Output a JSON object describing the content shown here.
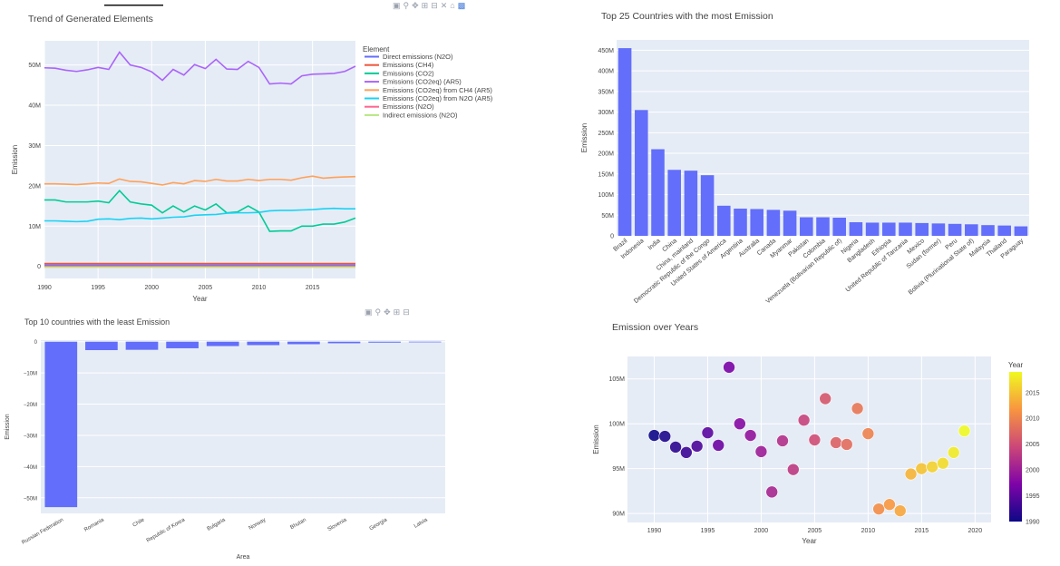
{
  "colors": {
    "plot_bg": "#e5ecf6",
    "grid": "#ffffff",
    "bar": "#636efa",
    "text": "#444444"
  },
  "modebar_icons": [
    "camera-icon",
    "zoom-icon",
    "pan-icon",
    "zoom-in-icon",
    "zoom-out-icon",
    "autoscale-icon",
    "home-icon",
    "logo-icon"
  ],
  "chart_data": [
    {
      "type": "line",
      "title": "Trend of Generated Elements",
      "xlabel": "Year",
      "ylabel": "Emission",
      "legend_title": "Element",
      "legend_position": "right",
      "xlim": [
        1990,
        2019
      ],
      "ylim": [
        -3000000,
        56000000
      ],
      "x_ticks": [
        1990,
        1995,
        2000,
        2005,
        2010,
        2015
      ],
      "y_ticks": [
        {
          "v": 0,
          "t": "0"
        },
        {
          "v": 10000000,
          "t": "10M"
        },
        {
          "v": 20000000,
          "t": "20M"
        },
        {
          "v": 30000000,
          "t": "30M"
        },
        {
          "v": 40000000,
          "t": "40M"
        },
        {
          "v": 50000000,
          "t": "50M"
        }
      ],
      "x": [
        1990,
        1991,
        1992,
        1993,
        1994,
        1995,
        1996,
        1997,
        1998,
        1999,
        2000,
        2001,
        2002,
        2003,
        2004,
        2005,
        2006,
        2007,
        2008,
        2009,
        2010,
        2011,
        2012,
        2013,
        2014,
        2015,
        2016,
        2017,
        2018,
        2019
      ],
      "series": [
        {
          "name": "Direct emissions (N2O)",
          "color": "#636efa",
          "values": [
            300000,
            300000,
            300000,
            300000,
            300000,
            300000,
            300000,
            300000,
            300000,
            300000,
            300000,
            300000,
            300000,
            300000,
            300000,
            300000,
            300000,
            300000,
            300000,
            300000,
            300000,
            300000,
            300000,
            300000,
            300000,
            300000,
            300000,
            300000,
            300000,
            300000
          ]
        },
        {
          "name": "Emissions (CH4)",
          "color": "#ef553b",
          "values": [
            700000,
            700000,
            700000,
            700000,
            700000,
            700000,
            700000,
            700000,
            700000,
            700000,
            700000,
            700000,
            700000,
            700000,
            700000,
            700000,
            700000,
            700000,
            700000,
            700000,
            700000,
            700000,
            700000,
            700000,
            700000,
            700000,
            700000,
            700000,
            700000,
            700000
          ]
        },
        {
          "name": "Emissions (CO2)",
          "color": "#00cc96",
          "values": [
            16500000,
            16500000,
            16000000,
            16000000,
            16000000,
            16200000,
            15800000,
            18800000,
            16000000,
            15500000,
            15200000,
            13300000,
            15000000,
            13500000,
            15000000,
            14000000,
            15500000,
            13300000,
            13500000,
            15000000,
            13500000,
            8700000,
            8800000,
            8800000,
            10000000,
            10000000,
            10500000,
            10500000,
            11000000,
            12000000
          ]
        },
        {
          "name": "Emissions (CO2eq) (AR5)",
          "color": "#ab63fa",
          "values": [
            49300000,
            49200000,
            48700000,
            48400000,
            48800000,
            49400000,
            48900000,
            53200000,
            50000000,
            49400000,
            48300000,
            46200000,
            48900000,
            47500000,
            50100000,
            49100000,
            51400000,
            49000000,
            48900000,
            50900000,
            49400000,
            45300000,
            45500000,
            45300000,
            47300000,
            47700000,
            47800000,
            47900000,
            48400000,
            49700000
          ]
        },
        {
          "name": "Emissions (CO2eq) from CH4 (AR5)",
          "color": "#ffa15a",
          "values": [
            20500000,
            20500000,
            20400000,
            20300000,
            20500000,
            20700000,
            20600000,
            21700000,
            21100000,
            21000000,
            20600000,
            20200000,
            20800000,
            20500000,
            21300000,
            21100000,
            21600000,
            21200000,
            21200000,
            21600000,
            21300000,
            21600000,
            21600000,
            21400000,
            22000000,
            22400000,
            21900000,
            22100000,
            22200000,
            22300000
          ]
        },
        {
          "name": "Emissions (CO2eq) from N2O (AR5)",
          "color": "#19d3f3",
          "values": [
            11300000,
            11300000,
            11200000,
            11100000,
            11200000,
            11700000,
            11800000,
            11600000,
            11900000,
            12000000,
            11800000,
            12000000,
            12200000,
            12300000,
            12700000,
            12800000,
            12900000,
            13200000,
            13300000,
            13300000,
            13400000,
            13800000,
            13900000,
            13900000,
            14000000,
            14100000,
            14300000,
            14400000,
            14300000,
            14300000
          ]
        },
        {
          "name": "Emissions (N2O)",
          "color": "#ff6692",
          "values": [
            40000,
            40000,
            40000,
            40000,
            40000,
            40000,
            40000,
            40000,
            40000,
            40000,
            40000,
            40000,
            40000,
            40000,
            40000,
            40000,
            40000,
            40000,
            40000,
            40000,
            40000,
            40000,
            40000,
            40000,
            40000,
            40000,
            40000,
            40000,
            40000,
            40000
          ]
        },
        {
          "name": "Indirect emissions (N2O)",
          "color": "#b6e880",
          "values": [
            -200000,
            -200000,
            -200000,
            -200000,
            -200000,
            -200000,
            -200000,
            -200000,
            -200000,
            -200000,
            -200000,
            -200000,
            -200000,
            -200000,
            -200000,
            -200000,
            -200000,
            -200000,
            -200000,
            -200000,
            -200000,
            -200000,
            -200000,
            -200000,
            -200000,
            -200000,
            -200000,
            -200000,
            -200000,
            -200000
          ]
        }
      ]
    },
    {
      "type": "bar",
      "title": "Top 25 Countries with the most Emission",
      "xlabel": "",
      "ylabel": "Emission",
      "ylim": [
        0,
        475000000
      ],
      "y_ticks": [
        {
          "v": 0,
          "t": "0"
        },
        {
          "v": 50000000,
          "t": "50M"
        },
        {
          "v": 100000000,
          "t": "100M"
        },
        {
          "v": 150000000,
          "t": "150M"
        },
        {
          "v": 200000000,
          "t": "200M"
        },
        {
          "v": 250000000,
          "t": "250M"
        },
        {
          "v": 300000000,
          "t": "300M"
        },
        {
          "v": 350000000,
          "t": "350M"
        },
        {
          "v": 400000000,
          "t": "400M"
        },
        {
          "v": 450000000,
          "t": "450M"
        }
      ],
      "categories": [
        "Brazil",
        "Indonesia",
        "India",
        "China",
        "China, mainland",
        "Democratic Republic of the Congo",
        "United States of America",
        "Argentina",
        "Australia",
        "Canada",
        "Myanmar",
        "Pakistan",
        "Colombia",
        "Venezuela (Bolivarian Republic of)",
        "Nigeria",
        "Bangladesh",
        "Ethiopia",
        "United Republic of Tanzania",
        "Mexico",
        "Sudan (former)",
        "Peru",
        "Bolivia (Plurinational State of)",
        "Malaysia",
        "Thailand",
        "Paraguay"
      ],
      "values": [
        455000000,
        305000000,
        210000000,
        160000000,
        158000000,
        147000000,
        73000000,
        66000000,
        65000000,
        63000000,
        61000000,
        45000000,
        45000000,
        44000000,
        33000000,
        32000000,
        32000000,
        32000000,
        31000000,
        30000000,
        29000000,
        28000000,
        26000000,
        25000000,
        23000000
      ]
    },
    {
      "type": "bar",
      "title": "Top 10 countries with the least Emission",
      "xlabel": "Area",
      "ylabel": "Emission",
      "ylim": [
        -55000000,
        500000
      ],
      "y_ticks": [
        {
          "v": 0,
          "t": "0"
        },
        {
          "v": -10000000,
          "t": "−10M"
        },
        {
          "v": -20000000,
          "t": "−20M"
        },
        {
          "v": -30000000,
          "t": "−30M"
        },
        {
          "v": -40000000,
          "t": "−40M"
        },
        {
          "v": -50000000,
          "t": "−50M"
        }
      ],
      "categories": [
        "Russian Federation",
        "Romania",
        "Chile",
        "Republic of Korea",
        "Bulgaria",
        "Norway",
        "Bhutan",
        "Slovenia",
        "Georgia",
        "Latvia"
      ],
      "values": [
        -53000000,
        -2700000,
        -2600000,
        -2100000,
        -1400000,
        -1100000,
        -800000,
        -500000,
        -300000,
        -200000
      ]
    },
    {
      "type": "scatter",
      "title": "Emission over Years",
      "xlabel": "Year",
      "ylabel": "Emission",
      "xlim": [
        1987.5,
        2021.5
      ],
      "ylim": [
        89000000,
        107500000
      ],
      "x_ticks": [
        1990,
        1995,
        2000,
        2005,
        2010,
        2015,
        2020
      ],
      "y_ticks": [
        {
          "v": 90000000,
          "t": "90M"
        },
        {
          "v": 95000000,
          "t": "95M"
        },
        {
          "v": 100000000,
          "t": "100M"
        },
        {
          "v": 105000000,
          "t": "105M"
        }
      ],
      "colorbar": {
        "title": "Year",
        "min": 1990,
        "max": 2019,
        "ticks": [
          1990,
          1995,
          2000,
          2005,
          2010,
          2015
        ]
      },
      "x": [
        1990,
        1991,
        1992,
        1993,
        1994,
        1995,
        1996,
        1997,
        1998,
        1999,
        2000,
        2001,
        2002,
        2003,
        2004,
        2005,
        2006,
        2007,
        2008,
        2009,
        2010,
        2011,
        2012,
        2013,
        2014,
        2015,
        2016,
        2017,
        2018,
        2019
      ],
      "y": [
        98700000,
        98600000,
        97400000,
        96800000,
        97500000,
        99000000,
        97600000,
        106300000,
        100000000,
        98700000,
        96900000,
        92400000,
        98100000,
        94900000,
        100400000,
        98200000,
        102800000,
        97900000,
        97700000,
        101700000,
        98900000,
        90500000,
        91000000,
        90300000,
        94400000,
        95000000,
        95200000,
        95600000,
        96800000,
        99200000
      ]
    }
  ]
}
